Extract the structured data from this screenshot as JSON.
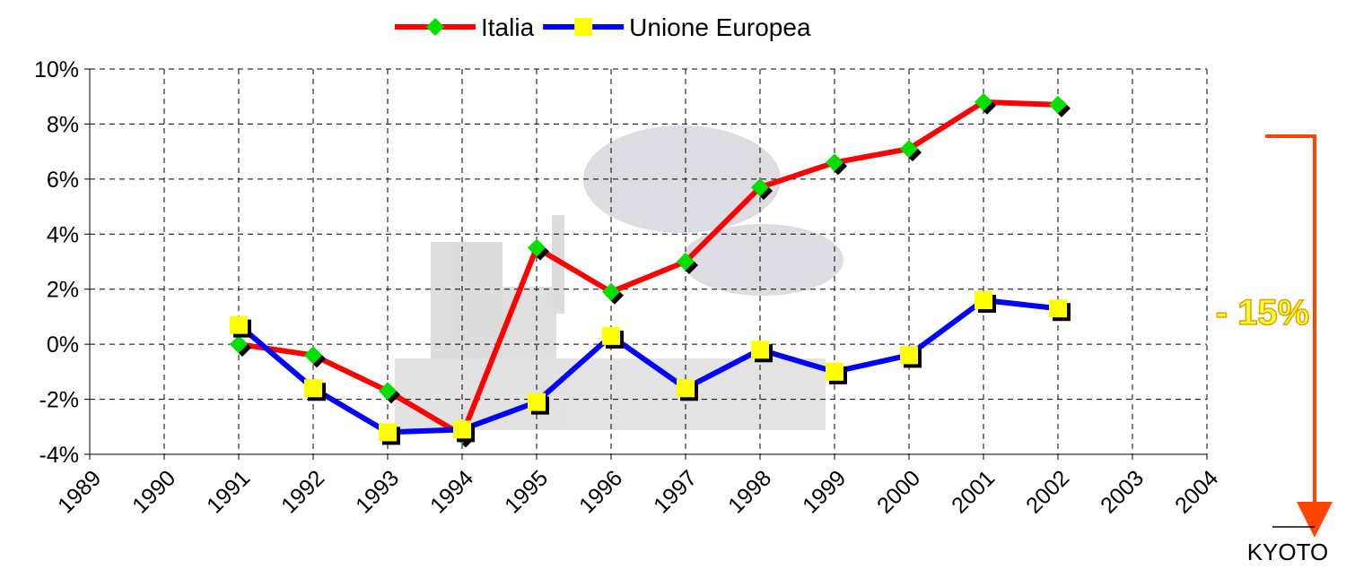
{
  "chart_data": {
    "type": "line",
    "x": [
      1991,
      1992,
      1993,
      1994,
      1995,
      1996,
      1997,
      1998,
      1999,
      2000,
      2001,
      2002
    ],
    "series": [
      {
        "name": "Italia",
        "color": "#ff0000",
        "marker_color": "#00e000",
        "marker": "diamond",
        "values": [
          0.0,
          -0.4,
          -1.7,
          -3.3,
          3.5,
          1.9,
          3.0,
          5.7,
          6.6,
          7.1,
          8.8,
          8.7
        ]
      },
      {
        "name": "Unione Europea",
        "color": "#0000ff",
        "marker_color": "#ffff00",
        "marker": "square",
        "values": [
          0.7,
          -1.6,
          -3.2,
          -3.1,
          -2.1,
          0.3,
          -1.6,
          -0.2,
          -1.0,
          -0.4,
          1.6,
          1.3
        ]
      }
    ],
    "xlim": [
      1989,
      2004
    ],
    "xticks": [
      1989,
      1990,
      1991,
      1992,
      1993,
      1994,
      1995,
      1996,
      1997,
      1998,
      1999,
      2000,
      2001,
      2002,
      2003,
      2004
    ],
    "ylim": [
      -4,
      10
    ],
    "yticks": [
      {
        "value": -4,
        "label": "-4%"
      },
      {
        "value": -2,
        "label": "-2%"
      },
      {
        "value": 0,
        "label": "0%"
      },
      {
        "value": 2,
        "label": "2%"
      },
      {
        "value": 4,
        "label": "4%"
      },
      {
        "value": 6,
        "label": "6%"
      },
      {
        "value": 8,
        "label": "8%"
      },
      {
        "value": 10,
        "label": "10%"
      }
    ],
    "grid": true,
    "legend": "top",
    "annotations": [
      "- 15%",
      "KYOTO"
    ]
  }
}
